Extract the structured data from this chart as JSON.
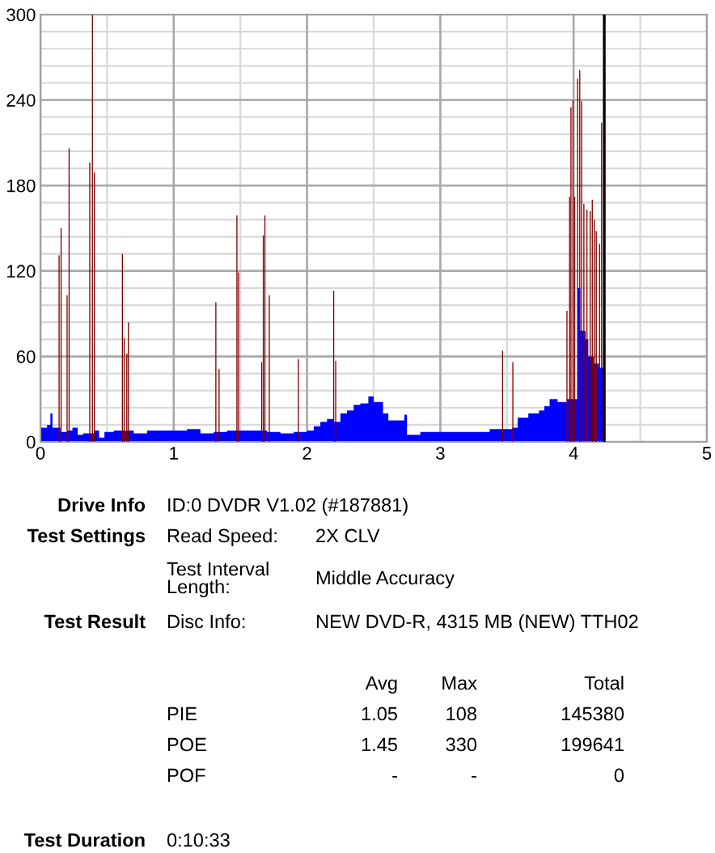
{
  "chart_data": {
    "type": "area",
    "series": [
      {
        "color": "#0000ff",
        "x": [
          0,
          0.05,
          0.075,
          0.09,
          0.15,
          0.2,
          0.24,
          0.28,
          0.32,
          0.4,
          0.44,
          0.48,
          0.55,
          0.6,
          0.7,
          0.8,
          0.9,
          1.0,
          1.1,
          1.2,
          1.3,
          1.4,
          1.5,
          1.6,
          1.7,
          1.8,
          1.9,
          2.0,
          2.05,
          2.1,
          2.15,
          2.2,
          2.25,
          2.3,
          2.35,
          2.4,
          2.46,
          2.5,
          2.57,
          2.61,
          2.73,
          2.75,
          2.85,
          3.17,
          3.37,
          3.54,
          3.58,
          3.66,
          3.74,
          3.78,
          3.82,
          3.88,
          3.95,
          4.01,
          4.03,
          4.05,
          4.09,
          4.11,
          4.15,
          4.19,
          4.22,
          4.23
        ],
        "values": [
          10,
          12,
          20,
          10,
          7,
          8,
          10,
          5,
          6,
          8,
          3,
          7,
          8,
          8,
          6,
          8,
          8,
          8,
          9,
          6,
          7,
          8,
          8,
          8,
          7,
          6,
          7,
          8,
          11,
          14,
          16,
          14,
          20,
          22,
          26,
          27,
          32,
          28,
          20,
          15,
          19,
          5,
          7,
          7,
          9,
          10,
          17,
          20,
          22,
          25,
          30,
          28,
          30,
          30,
          108,
          78,
          72,
          60,
          55,
          52,
          52,
          0
        ]
      },
      {
        "type": "bar",
        "color": "#800000",
        "x": [
          0.14,
          0.155,
          0.2,
          0.215,
          0.37,
          0.39,
          0.405,
          0.615,
          0.628,
          0.648,
          0.66,
          1.316,
          1.34,
          1.474,
          1.486,
          1.66,
          1.672,
          1.684,
          1.717,
          1.935,
          2.2,
          2.215,
          3.467,
          3.544,
          3.95,
          3.97,
          3.98,
          3.995,
          4.008,
          4.03,
          4.046,
          4.06,
          4.077,
          4.1,
          4.124,
          4.14,
          4.156,
          4.17,
          4.195,
          4.21
        ],
        "values": [
          131,
          150,
          103,
          206,
          196,
          300,
          189,
          132,
          73,
          62,
          84,
          98,
          51,
          159,
          119,
          56,
          145,
          159,
          103,
          58,
          106,
          57,
          64,
          56,
          92,
          172,
          235,
          240,
          172,
          255,
          261,
          239,
          167,
          163,
          162,
          170,
          156,
          148,
          139,
          224
        ]
      }
    ],
    "xlim": [
      0,
      5
    ],
    "xticks": [
      0,
      1,
      2,
      3,
      4,
      5
    ],
    "ylim": [
      0,
      300
    ],
    "yticks": [
      0,
      60,
      120,
      180,
      240,
      300
    ],
    "grid": true,
    "ref_lines": [
      {
        "axis": "x",
        "value": 4.23,
        "color": "#000000"
      }
    ],
    "annotations": [
      "Drive Info",
      "ID:0 DVDR V1.02 (#187881)",
      "Test Settings",
      "Read Speed:",
      "2X CLV",
      "Test Interval\nLength:",
      "Middle Accuracy",
      "Test Result",
      "Disc Info:",
      "NEW DVD-R, 4315 MB (NEW) TTH02",
      "Avg",
      "Max",
      "Total",
      "PIE",
      "1.05",
      "108",
      "145380",
      "POE",
      "1.45",
      "330",
      "199641",
      "POF",
      "-",
      "-",
      "0",
      "Test Duration",
      "0:10:33"
    ]
  }
}
